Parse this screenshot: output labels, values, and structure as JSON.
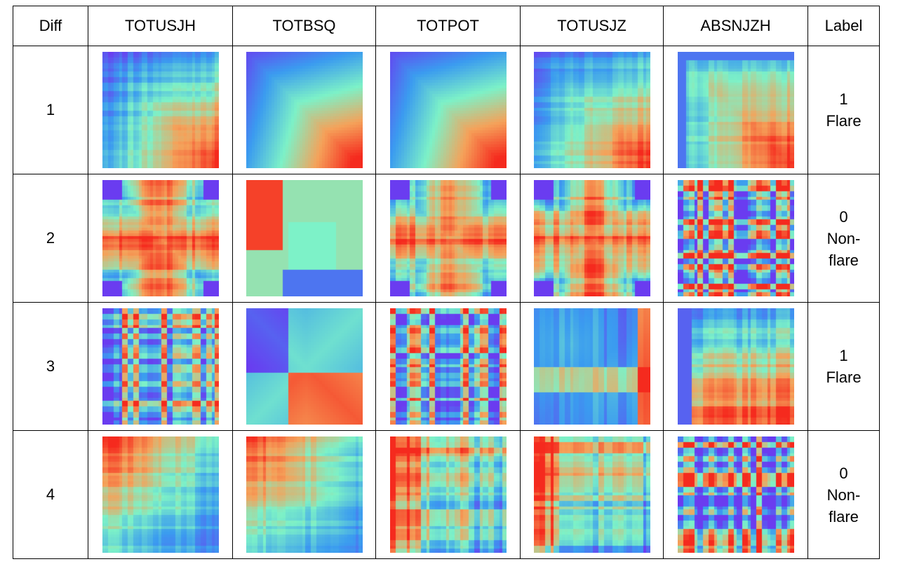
{
  "table": {
    "headers": [
      "Diff",
      "TOTUSJH",
      "TOTBSQ",
      "TOTPOT",
      "TOTUSJZ",
      "ABSNJZH",
      "Label"
    ],
    "rows": [
      {
        "diff": "1",
        "label_lines": [
          "1",
          "Flare"
        ]
      },
      {
        "diff": "2",
        "label_lines": [
          "0",
          "Non-",
          "flare"
        ]
      },
      {
        "diff": "3",
        "label_lines": [
          "1",
          "Flare"
        ]
      },
      {
        "diff": "4",
        "label_lines": [
          "0",
          "Non-",
          "flare"
        ]
      }
    ]
  },
  "heatmaps": {
    "palette": [
      "#6a3cf0",
      "#3b9cf0",
      "#7df2c8",
      "#f6a25a",
      "#f52a1e"
    ],
    "cells": [
      [
        {
          "pattern": "diag-rise",
          "base": 0.15
        },
        {
          "pattern": "diag-smooth",
          "base": 0.1
        },
        {
          "pattern": "diag-smooth",
          "base": 0.2
        },
        {
          "pattern": "diag-rise",
          "base": 0.2
        },
        {
          "pattern": "corner-frame",
          "base": 0.4
        }
      ],
      [
        {
          "pattern": "cross-blocks",
          "base": 0.5
        },
        {
          "pattern": "cross-smooth",
          "base": 0.5
        },
        {
          "pattern": "cross-blocks",
          "base": 0.55
        },
        {
          "pattern": "cross-blocks",
          "base": 0.45
        },
        {
          "pattern": "stripes",
          "base": 0.5
        }
      ],
      [
        {
          "pattern": "stripes-x",
          "base": 0.4
        },
        {
          "pattern": "x-smooth",
          "base": 0.4
        },
        {
          "pattern": "stripes-x",
          "base": 0.5
        },
        {
          "pattern": "blobs",
          "base": 0.4
        },
        {
          "pattern": "corner-frame-low",
          "base": 0.4
        }
      ],
      [
        {
          "pattern": "diag-fall",
          "base": 0.6
        },
        {
          "pattern": "diag-fall",
          "base": 0.55
        },
        {
          "pattern": "diag-fall-blocks",
          "base": 0.5
        },
        {
          "pattern": "diag-fall-blocks",
          "base": 0.45
        },
        {
          "pattern": "stripes",
          "base": 0.55
        }
      ]
    ]
  }
}
